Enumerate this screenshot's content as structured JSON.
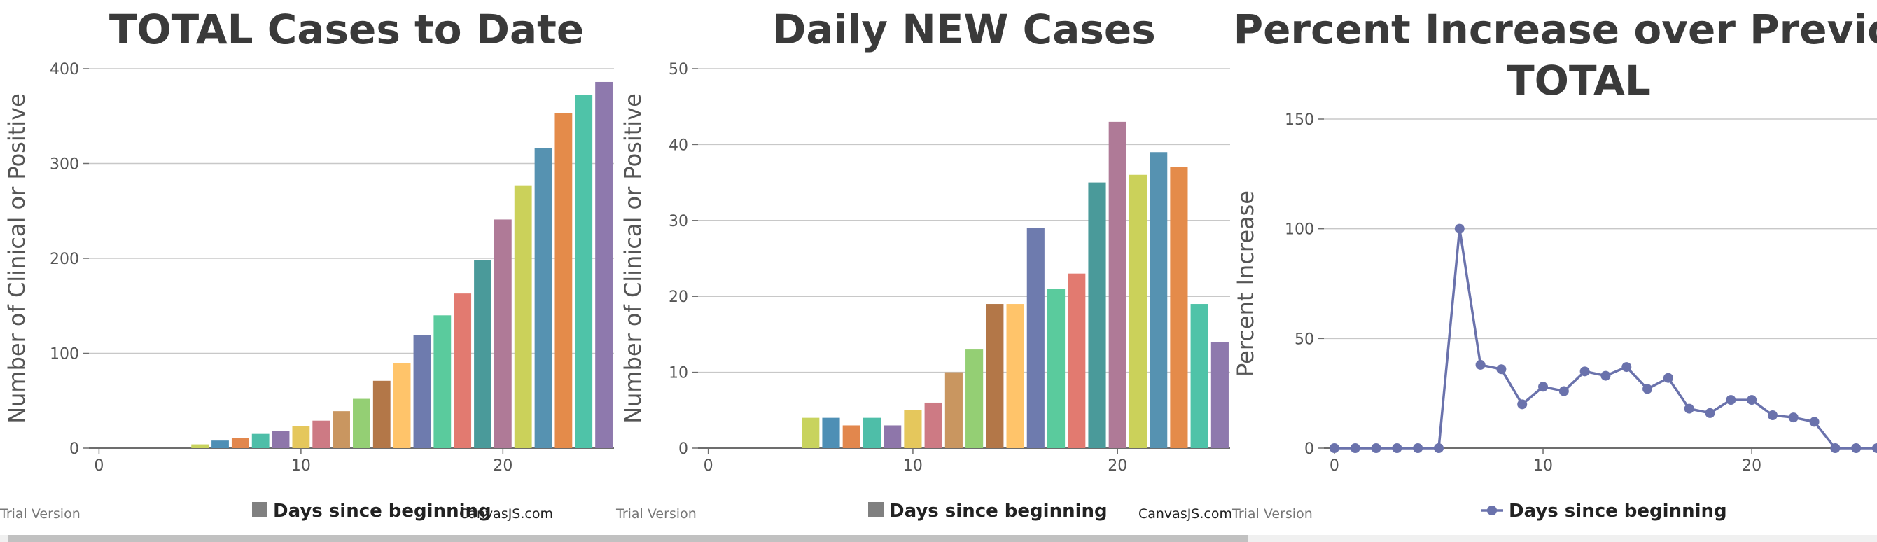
{
  "colors": {
    "palette": [
      "#C8D35E",
      "#4E8FB5",
      "#E2874D",
      "#4EBEA8",
      "#8E76AA",
      "#E5C75C",
      "#CD7A84",
      "#C99660",
      "#94CF74",
      "#B37748",
      "#FFC46A",
      "#6E7BAE",
      "#5ACB9D",
      "#E27A70",
      "#4A9A9A",
      "#AF7A97",
      "#CBD15A",
      "#5692B1",
      "#E48B4A",
      "#4FC3A8",
      "#8E79AD"
    ],
    "line": "#6A72AC",
    "grid": "#c8c8c8",
    "axis": "#6d6d6d"
  },
  "footer": {
    "trial_label": "Trial Version",
    "credit_label": "CanvasJS.com"
  },
  "chart_data": [
    {
      "type": "bar",
      "title": "TOTAL Cases to Date",
      "ylabel": "Number of Clinical or Positive",
      "legend": "Days since beginning",
      "xlim": [
        -0.5,
        25.5
      ],
      "ylim": [
        0,
        400
      ],
      "yticks": [
        0,
        100,
        200,
        300,
        400
      ],
      "xticks": [
        0,
        10,
        20
      ],
      "x": [
        5,
        6,
        7,
        8,
        9,
        10,
        11,
        12,
        13,
        14,
        15,
        16,
        17,
        18,
        19,
        20,
        21,
        22,
        23,
        24,
        25
      ],
      "values": [
        4,
        8,
        11,
        15,
        18,
        23,
        29,
        39,
        52,
        71,
        90,
        119,
        140,
        163,
        198,
        241,
        277,
        316,
        353,
        372,
        386
      ]
    },
    {
      "type": "bar",
      "title": "Daily NEW Cases",
      "ylabel": "Number of Clinical or Positive",
      "legend": "Days since beginning",
      "xlim": [
        -0.5,
        25.5
      ],
      "ylim": [
        0,
        50
      ],
      "yticks": [
        0,
        10,
        20,
        30,
        40,
        50
      ],
      "xticks": [
        0,
        10,
        20
      ],
      "x": [
        5,
        6,
        7,
        8,
        9,
        10,
        11,
        12,
        13,
        14,
        15,
        16,
        17,
        18,
        19,
        20,
        21,
        22,
        23,
        24,
        25
      ],
      "values": [
        4,
        4,
        3,
        4,
        3,
        5,
        6,
        10,
        13,
        19,
        19,
        29,
        21,
        23,
        35,
        43,
        36,
        39,
        37,
        19,
        14
      ]
    },
    {
      "type": "line",
      "title": "Percent Increase over Previous TOTAL",
      "title_lines": [
        "Percent Increase over Previou",
        "TOTAL"
      ],
      "ylabel": "Percent Increase",
      "legend": "Days since beginning",
      "xlim": [
        -0.5,
        26
      ],
      "ylim": [
        0,
        150
      ],
      "yticks": [
        0,
        50,
        100,
        150
      ],
      "xticks": [
        0,
        10,
        20
      ],
      "x": [
        0,
        1,
        2,
        3,
        4,
        5,
        6,
        7,
        8,
        9,
        10,
        11,
        12,
        13,
        14,
        15,
        16,
        17,
        18,
        19,
        20,
        21,
        22,
        23,
        24,
        25,
        26
      ],
      "values": [
        0,
        0,
        0,
        0,
        0,
        0,
        100,
        38,
        36,
        20,
        28,
        26,
        35,
        33,
        37,
        27,
        32,
        18,
        16,
        22,
        22,
        15,
        14,
        12,
        0,
        0,
        0
      ]
    }
  ]
}
